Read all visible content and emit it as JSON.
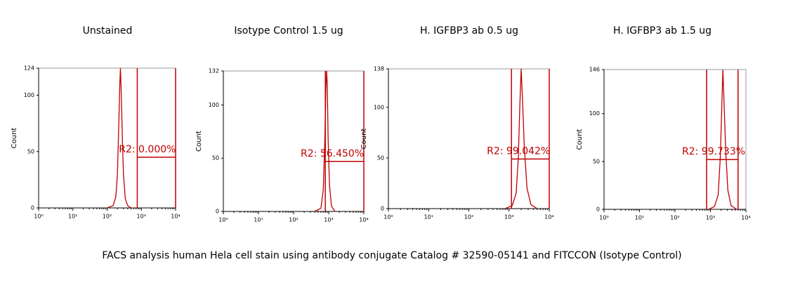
{
  "chart_data": [
    {
      "type": "line",
      "title": "Unstained",
      "y_label": "Count",
      "log_x": true,
      "color": "#c00000",
      "x": [
        100,
        150,
        180,
        200,
        220,
        235,
        245,
        260,
        280,
        300,
        340,
        400,
        500
      ],
      "values": [
        0,
        2,
        10,
        30,
        75,
        110,
        124,
        100,
        60,
        30,
        8,
        2,
        0
      ],
      "xlim": [
        1,
        10000
      ],
      "xticks": [
        {
          "value": 1,
          "label": "10⁰"
        },
        {
          "value": 10,
          "label": "10¹"
        },
        {
          "value": 100,
          "label": "10²"
        },
        {
          "value": 1000,
          "label": "10³"
        },
        {
          "value": 10000,
          "label": "10⁴"
        }
      ],
      "ylim": [
        0,
        124
      ],
      "yticks": [
        0,
        50,
        100,
        124
      ],
      "gate": {
        "label": "R2: 0.000%",
        "x": [
          760,
          10000
        ],
        "y": 45
      }
    },
    {
      "type": "line",
      "title": "Isotype Control 1.5 ug",
      "y_label": "Count",
      "log_x": true,
      "color": "#c00000",
      "x": [
        400,
        600,
        700,
        780,
        830,
        870,
        910,
        960,
        1050,
        1200,
        1500
      ],
      "values": [
        0,
        3,
        20,
        70,
        115,
        132,
        120,
        70,
        25,
        5,
        0
      ],
      "xlim": [
        1,
        10000
      ],
      "xticks": [
        {
          "value": 1,
          "label": "10⁰"
        },
        {
          "value": 10,
          "label": "10¹"
        },
        {
          "value": 100,
          "label": "10²"
        },
        {
          "value": 1000,
          "label": "10³"
        },
        {
          "value": 10000,
          "label": "10⁴"
        }
      ],
      "ylim": [
        0,
        132
      ],
      "yticks": [
        0,
        50,
        100,
        132
      ],
      "gate": {
        "label": "R2: 56.450%",
        "x": [
          800,
          10000
        ],
        "y": 47
      }
    },
    {
      "type": "line",
      "title": "H. IGFBP3 ab 0.5 ug",
      "y_label": "Count",
      "log_x": true,
      "color": "#c00000",
      "x": [
        800,
        1200,
        1500,
        1700,
        1850,
        2000,
        2150,
        2400,
        2800,
        3500,
        5000
      ],
      "values": [
        0,
        3,
        15,
        50,
        100,
        138,
        110,
        60,
        20,
        4,
        0
      ],
      "xlim": [
        1,
        10000
      ],
      "xticks": [
        {
          "value": 1,
          "label": "10⁰"
        },
        {
          "value": 10,
          "label": "10¹"
        },
        {
          "value": 100,
          "label": "10²"
        },
        {
          "value": 1000,
          "label": "10³"
        },
        {
          "value": 10000,
          "label": "10⁴"
        }
      ],
      "ylim": [
        0,
        138
      ],
      "yticks": [
        0,
        50,
        100,
        138
      ],
      "gate": {
        "label": "R2: 99.042%",
        "x": [
          1150,
          10000
        ],
        "y": 49
      }
    },
    {
      "type": "line",
      "title": "H. IGFBP3 ab 1.5 ug",
      "y_label": "Count",
      "log_x": true,
      "color": "#c00000",
      "x": [
        900,
        1300,
        1650,
        1900,
        2100,
        2240,
        2400,
        2700,
        3100,
        3800,
        5500
      ],
      "values": [
        0,
        3,
        15,
        55,
        110,
        146,
        115,
        60,
        20,
        4,
        0
      ],
      "xlim": [
        1,
        10000
      ],
      "xticks": [
        {
          "value": 1,
          "label": "10⁰"
        },
        {
          "value": 10,
          "label": "10¹"
        },
        {
          "value": 100,
          "label": "10²"
        },
        {
          "value": 1000,
          "label": "10³"
        },
        {
          "value": 10000,
          "label": "10⁴"
        }
      ],
      "ylim": [
        0,
        146
      ],
      "yticks": [
        0,
        50,
        100,
        146
      ],
      "gate": {
        "label": "R2: 99.733%",
        "x": [
          780,
          6000
        ],
        "y": 52
      }
    }
  ],
  "caption": "FACS analysis human Hela cell stain using antibody conjugate Catalog # 32590-05141 and FITCCON (Isotype Control)"
}
